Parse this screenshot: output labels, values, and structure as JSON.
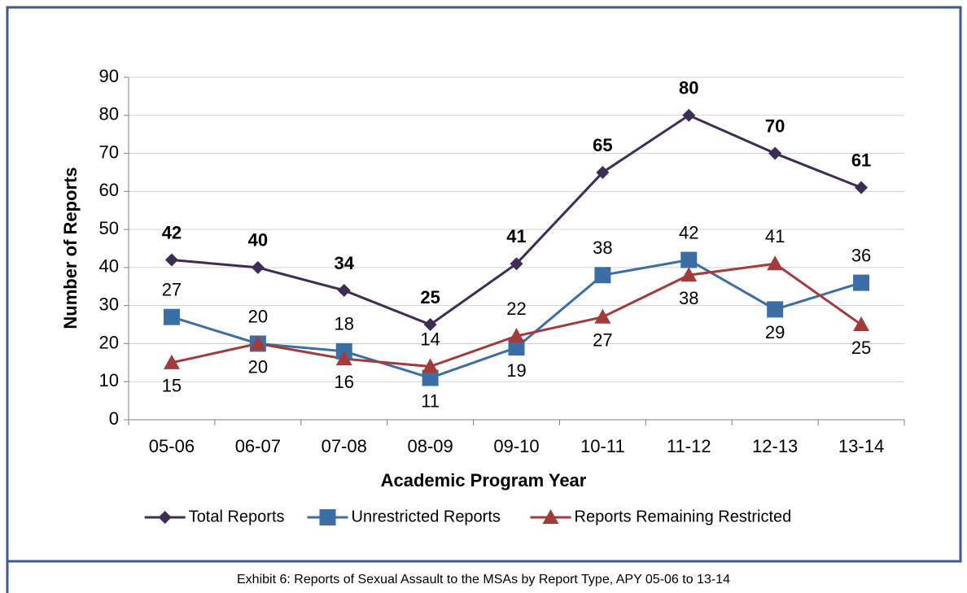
{
  "chart_data": {
    "type": "line",
    "x_label": "Academic Program Year",
    "y_label": "Number of Reports",
    "caption": "Exhibit 6: Reports of Sexual Assault to the MSAs by Report Type, APY 05-06 to 13-14",
    "categories": [
      "05-06",
      "06-07",
      "07-08",
      "08-09",
      "09-10",
      "10-11",
      "11-12",
      "12-13",
      "13-14"
    ],
    "series": [
      {
        "name": "Total Reports",
        "color": "#3d2c55",
        "marker": "diamond",
        "values": [
          42,
          40,
          34,
          25,
          41,
          65,
          80,
          70,
          61
        ]
      },
      {
        "name": "Unrestricted Reports",
        "color": "#3b6ea5",
        "marker": "square",
        "values": [
          27,
          20,
          18,
          11,
          19,
          38,
          42,
          29,
          36
        ]
      },
      {
        "name": "Reports Remaining Restricted",
        "color": "#a33b3b",
        "marker": "triangle",
        "values": [
          15,
          20,
          16,
          14,
          22,
          27,
          38,
          41,
          25
        ]
      }
    ],
    "ylim": [
      0,
      90
    ],
    "yticks": [
      0,
      10,
      20,
      30,
      40,
      50,
      60,
      70,
      80,
      90
    ],
    "grid": true,
    "legend": "bottom"
  }
}
